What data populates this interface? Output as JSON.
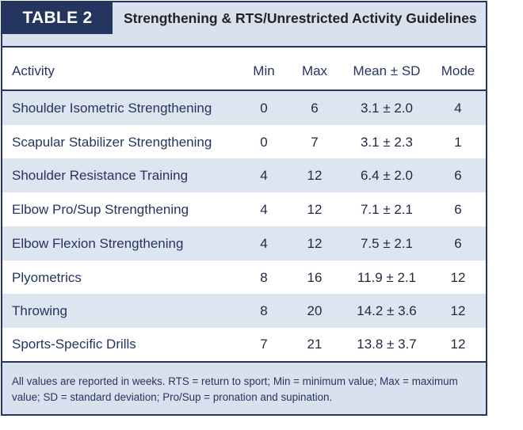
{
  "table": {
    "label": "TABLE 2",
    "title": "Strengthening & RTS/Unrestricted Activity Guidelines",
    "columns": [
      "Activity",
      "Min",
      "Max",
      "Mean ± SD",
      "Mode"
    ],
    "rows": [
      {
        "activity": "Shoulder Isometric Strengthening",
        "min": "0",
        "max": "6",
        "mean_sd": "3.1 ± 2.0",
        "mode": "4"
      },
      {
        "activity": "Scapular Stabilizer Strengthening",
        "min": "0",
        "max": "7",
        "mean_sd": "3.1 ± 2.3",
        "mode": "1"
      },
      {
        "activity": "Shoulder Resistance Training",
        "min": "4",
        "max": "12",
        "mean_sd": "6.4 ± 2.0",
        "mode": "6"
      },
      {
        "activity": "Elbow Pro/Sup Strengthening",
        "min": "4",
        "max": "12",
        "mean_sd": "7.1 ± 2.1",
        "mode": "6"
      },
      {
        "activity": "Elbow Flexion Strengthening",
        "min": "4",
        "max": "12",
        "mean_sd": "7.5 ± 2.1",
        "mode": "6"
      },
      {
        "activity": "Plyometrics",
        "min": "8",
        "max": "16",
        "mean_sd": "11.9 ± 2.1",
        "mode": "12"
      },
      {
        "activity": "Throwing",
        "min": "8",
        "max": "20",
        "mean_sd": "14.2 ± 3.6",
        "mode": "12"
      },
      {
        "activity": "Sports-Specific Drills",
        "min": "7",
        "max": "21",
        "mean_sd": "13.8 ± 3.7",
        "mode": "12"
      }
    ],
    "footnote": "All values are reported in weeks. RTS = return to sport; Min = minimum value; Max = maximum value; SD = standard deviation; Pro/Sup = pronation and supination."
  }
}
